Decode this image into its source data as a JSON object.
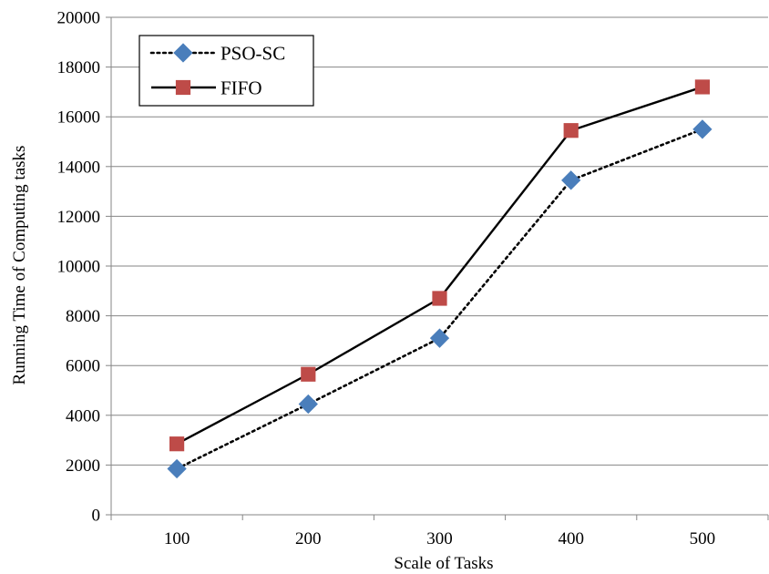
{
  "chart_data": {
    "type": "line",
    "title": "",
    "xlabel": "Scale of Tasks",
    "ylabel": "Running Time of Computing tasks",
    "categories": [
      "100",
      "200",
      "300",
      "400",
      "500"
    ],
    "ylim": [
      0,
      20000
    ],
    "yticks": [
      0,
      2000,
      4000,
      6000,
      8000,
      10000,
      12000,
      14000,
      16000,
      18000,
      20000
    ],
    "grid": true,
    "legend": "top-left",
    "series": [
      {
        "name": "PSO-SC",
        "values": [
          1850,
          4450,
          7100,
          13450,
          15500
        ],
        "color": "#4a7ebb",
        "marker": "diamond",
        "line": "dotted"
      },
      {
        "name": "FIFO",
        "values": [
          2850,
          5650,
          8700,
          15450,
          17200
        ],
        "color": "#be4b48",
        "marker": "square",
        "line": "solid"
      }
    ]
  }
}
